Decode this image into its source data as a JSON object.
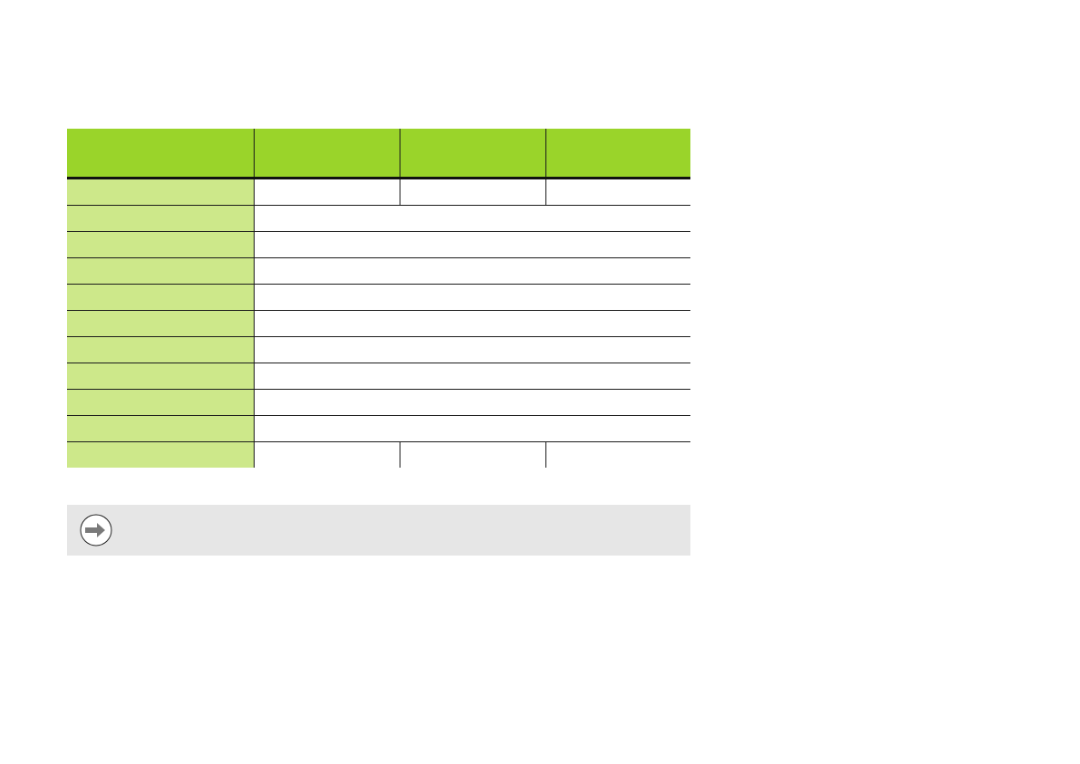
{
  "colors": {
    "header_bg": "#9AD42A",
    "label_bg": "#CDE88A",
    "note_bg": "#E6E6E6",
    "arrow": "#7A7A7A"
  },
  "table": {
    "headers": [
      "",
      "",
      "",
      ""
    ],
    "rows": [
      {
        "label": "",
        "cells": [
          "",
          "",
          ""
        ]
      },
      {
        "label": "",
        "cells": [
          ""
        ]
      },
      {
        "label": "",
        "cells": [
          ""
        ]
      },
      {
        "label": "",
        "cells": [
          ""
        ]
      },
      {
        "label": "",
        "cells": [
          ""
        ]
      },
      {
        "label": "",
        "cells": [
          ""
        ]
      },
      {
        "label": "",
        "cells": [
          ""
        ]
      },
      {
        "label": "",
        "cells": [
          ""
        ]
      },
      {
        "label": "",
        "cells": [
          ""
        ]
      },
      {
        "label": "",
        "cells": [
          ""
        ]
      },
      {
        "label": "",
        "cells": [
          "",
          "",
          ""
        ]
      }
    ]
  },
  "note": {
    "icon": "arrow-right-circle-icon",
    "text": ""
  }
}
